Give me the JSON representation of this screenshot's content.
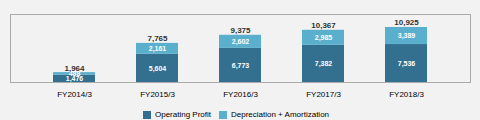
{
  "chart_data": {
    "type": "bar",
    "stacked": true,
    "categories": [
      "FY2014/3",
      "FY2015/3",
      "FY2016/3",
      "FY2017/3",
      "FY2018/3"
    ],
    "series": [
      {
        "name": "Operating Profit",
        "color": "#336f8f",
        "values": [
          1476,
          5604,
          6773,
          7382,
          7536
        ],
        "value_labels": [
          "1,476",
          "5,604",
          "6,773",
          "7,382",
          "7,536"
        ]
      },
      {
        "name": "Depreciation + Amortization",
        "color": "#5ab0cc",
        "values": [
          488,
          2161,
          2602,
          2985,
          3389
        ],
        "value_labels": [
          "488",
          "2,161",
          "2,602",
          "2,985",
          "3,389"
        ]
      }
    ],
    "totals": [
      1964,
      7765,
      9375,
      10367,
      10925
    ],
    "total_labels": [
      "1,964",
      "7,765",
      "9,375",
      "10,367",
      "10,925"
    ],
    "ylim": [
      0,
      13500
    ],
    "yticks": [],
    "data_labels": true,
    "tick_labels": "x",
    "grid": false,
    "legend": "bottom"
  }
}
